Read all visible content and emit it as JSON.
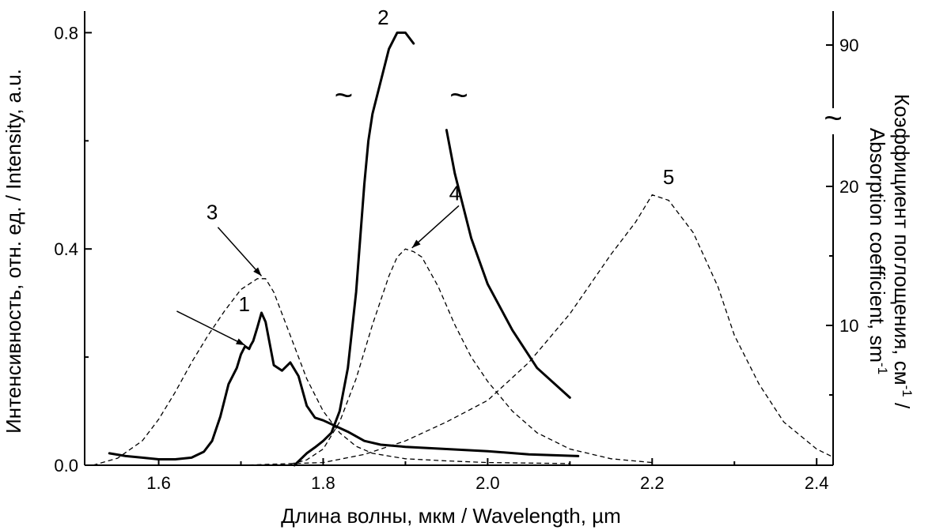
{
  "chart_data": {
    "type": "line",
    "xlabel": "Длина волны, мкм / Wavelength, µm",
    "ylabel": "Интенсивность, отн. ед. / Intensity, a.u.",
    "y2label_line1": "Коэффициент поглощения, см",
    "y2label_line1_sup": "-1",
    "y2label_line1_tail": " /",
    "y2label_line2": "Absorption coefficient, sm",
    "y2label_line2_sup": "-1",
    "xlim": [
      1.51,
      2.42
    ],
    "ylim": [
      0.0,
      0.84
    ],
    "x_ticks": [
      "1.6",
      "1.8",
      "2.0",
      "2.2",
      "2.4"
    ],
    "y_ticks": [
      "0.0",
      "0.4",
      "0.8"
    ],
    "y2_ticks": [
      "10",
      "20",
      "90"
    ],
    "y2_broken": true,
    "break_symbol": "~",
    "grid": false,
    "series": [
      {
        "label": "1",
        "style": "solid",
        "x": [
          1.54,
          1.56,
          1.58,
          1.6,
          1.62,
          1.64,
          1.655,
          1.665,
          1.675,
          1.685,
          1.695,
          1.7,
          1.705,
          1.71,
          1.712,
          1.715,
          1.72,
          1.725,
          1.73,
          1.74,
          1.75,
          1.76,
          1.77,
          1.78,
          1.79,
          1.8,
          1.83,
          1.85,
          1.87,
          1.9,
          1.95,
          2.0,
          2.05,
          2.11
        ],
        "values": [
          0.022,
          0.017,
          0.014,
          0.011,
          0.011,
          0.014,
          0.025,
          0.045,
          0.09,
          0.15,
          0.18,
          0.205,
          0.22,
          0.215,
          0.222,
          0.23,
          0.255,
          0.282,
          0.265,
          0.185,
          0.175,
          0.19,
          0.165,
          0.11,
          0.088,
          0.083,
          0.062,
          0.045,
          0.038,
          0.034,
          0.03,
          0.026,
          0.02,
          0.017
        ]
      },
      {
        "label": "2",
        "style": "solid",
        "x": [
          1.765,
          1.78,
          1.79,
          1.8,
          1.81,
          1.82,
          1.83,
          1.84,
          1.845,
          1.85,
          1.855,
          1.86,
          1.88,
          1.89,
          1.9,
          1.91,
          1.93,
          1.95,
          1.96,
          1.98,
          2.0,
          2.03,
          2.06,
          2.1
        ],
        "values": [
          0.0,
          0.022,
          0.033,
          0.045,
          0.06,
          0.1,
          0.18,
          0.32,
          0.42,
          0.52,
          0.6,
          0.65,
          0.77,
          0.8,
          0.8,
          0.78,
          0.705,
          0.62,
          0.54,
          0.42,
          0.335,
          0.25,
          0.18,
          0.125
        ]
      },
      {
        "label": "3",
        "style": "dashed",
        "x": [
          1.52,
          1.55,
          1.58,
          1.6,
          1.62,
          1.64,
          1.66,
          1.68,
          1.7,
          1.72,
          1.73,
          1.74,
          1.76,
          1.78,
          1.8,
          1.82,
          1.84,
          1.86,
          1.9,
          1.95,
          2.0,
          2.1
        ],
        "values": [
          0.0,
          0.013,
          0.045,
          0.085,
          0.135,
          0.19,
          0.24,
          0.285,
          0.325,
          0.345,
          0.345,
          0.32,
          0.24,
          0.16,
          0.1,
          0.06,
          0.035,
          0.022,
          0.012,
          0.008,
          0.005,
          0.003
        ]
      },
      {
        "label": "4",
        "style": "dashed",
        "x": [
          1.76,
          1.78,
          1.8,
          1.82,
          1.84,
          1.86,
          1.88,
          1.89,
          1.9,
          1.91,
          1.92,
          1.94,
          1.96,
          1.98,
          2.0,
          2.03,
          2.06,
          2.1,
          2.15,
          2.2
        ],
        "values": [
          0.002,
          0.01,
          0.03,
          0.08,
          0.16,
          0.26,
          0.35,
          0.385,
          0.4,
          0.395,
          0.385,
          0.33,
          0.26,
          0.2,
          0.155,
          0.1,
          0.06,
          0.03,
          0.012,
          0.005
        ]
      },
      {
        "label": "5",
        "style": "dashed",
        "x": [
          1.7,
          1.8,
          1.85,
          1.9,
          1.95,
          2.0,
          2.05,
          2.1,
          2.15,
          2.18,
          2.2,
          2.22,
          2.25,
          2.28,
          2.3,
          2.33,
          2.36,
          2.4,
          2.42
        ],
        "values": [
          0.0,
          0.005,
          0.02,
          0.045,
          0.08,
          0.12,
          0.19,
          0.28,
          0.39,
          0.45,
          0.5,
          0.49,
          0.43,
          0.33,
          0.24,
          0.15,
          0.08,
          0.03,
          0.015
        ]
      }
    ]
  }
}
